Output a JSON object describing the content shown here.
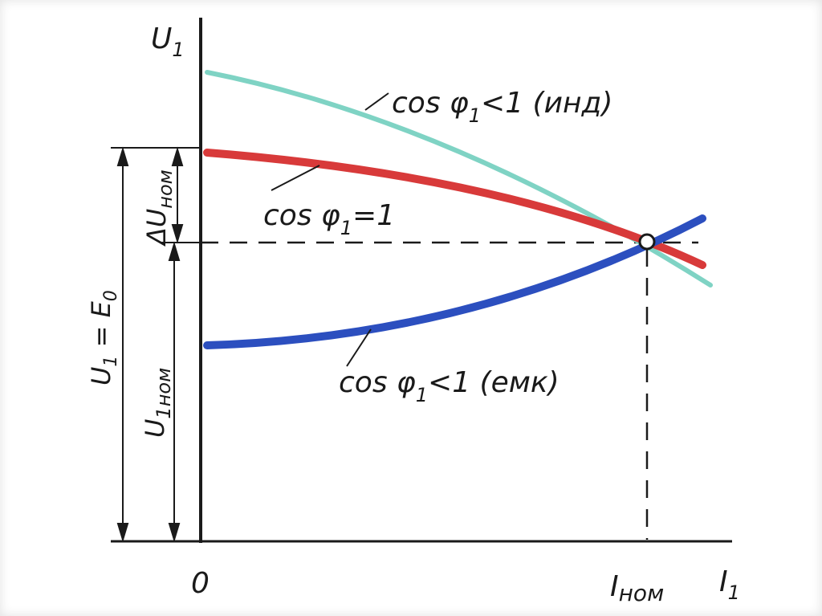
{
  "diagram": {
    "axes": {
      "y_label_main": "U",
      "y_label_sub": "1",
      "x_label_main": "I",
      "x_label_sub": "1",
      "origin": "0",
      "x_tick_main": "I",
      "x_tick_sub": "ном"
    },
    "dimensions": {
      "e0_main": "U",
      "e0_sub": "1",
      "e0_rest": " = E",
      "e0_rest_sub": "0",
      "unom_main": "U",
      "unom_sub": "1ном",
      "dunom_main": "ΔU",
      "dunom_sub": "ном"
    },
    "curves": {
      "ind": {
        "label_a": "cos φ",
        "label_sub": "1",
        "label_b": "<1 (инд)",
        "color": "#7fd3c4"
      },
      "unity": {
        "label_a": "cos φ",
        "label_sub": "1",
        "label_b": "=1",
        "color": "#d83a3a"
      },
      "cap": {
        "label_a": "cos φ",
        "label_sub": "1",
        "label_b": "<1 (емк)",
        "color": "#2c4fbf"
      }
    }
  }
}
